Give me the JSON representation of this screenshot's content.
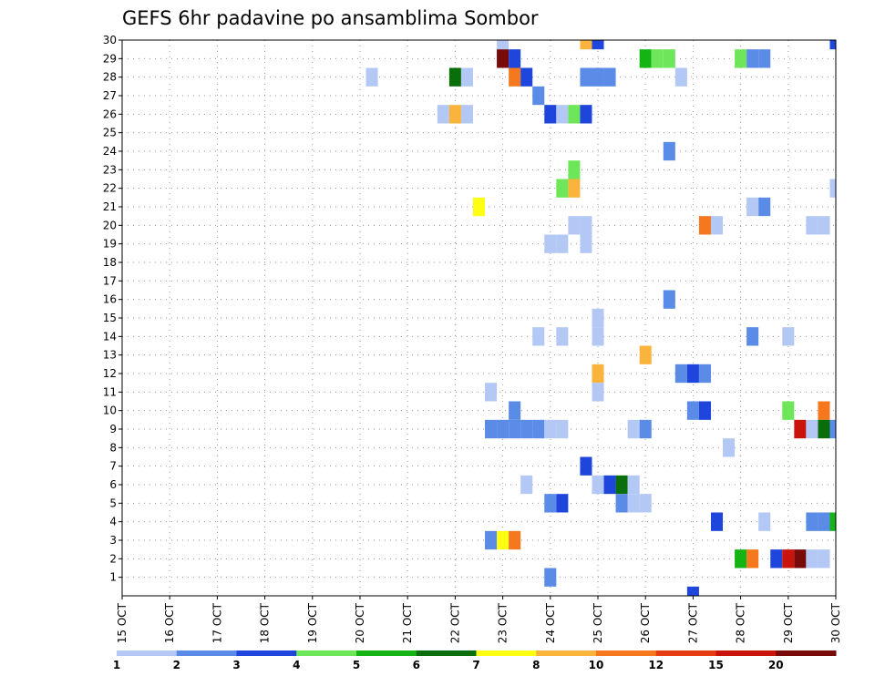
{
  "chart_data": {
    "type": "heatmap",
    "title": "GEFS 6hr padavine po ansamblima Sombor",
    "x_tick_labels": [
      "15 OCT",
      "16 OCT",
      "17 OCT",
      "18 OCT",
      "19 OCT",
      "20 OCT",
      "21 OCT",
      "22 OCT",
      "23 OCT",
      "24 OCT",
      "25 OCT",
      "26 OCT",
      "27 OCT",
      "28 OCT",
      "29 OCT",
      "30 OCT"
    ],
    "xlim_days": [
      15,
      30
    ],
    "ylim_members": [
      0,
      30
    ],
    "y_ticks": [
      1,
      2,
      3,
      4,
      5,
      6,
      7,
      8,
      9,
      10,
      11,
      12,
      13,
      14,
      15,
      16,
      17,
      18,
      19,
      20,
      21,
      22,
      23,
      24,
      25,
      26,
      27,
      28,
      29,
      30
    ],
    "time_step_hours": 6,
    "grid": true,
    "legend": {
      "placement": "bottom",
      "bins": [
        {
          "color": "#b4c8f5"
        },
        {
          "color": "#5a8be6"
        },
        {
          "color": "#1e46dc"
        },
        {
          "color": "#6ee65a"
        },
        {
          "color": "#14b414"
        },
        {
          "color": "#0a6e0a"
        },
        {
          "color": "#ffff14"
        },
        {
          "color": "#fab43c"
        },
        {
          "color": "#f5781e"
        },
        {
          "color": "#e63c14"
        },
        {
          "color": "#c8140a"
        },
        {
          "color": "#780a0a"
        }
      ],
      "labels": [
        "1",
        "2",
        "3",
        "4",
        "5",
        "6",
        "7",
        "8",
        "10",
        "12",
        "15",
        "20"
      ]
    },
    "cells": [
      {
        "member": 30,
        "day": 23.0,
        "v": 1
      },
      {
        "member": 30,
        "day": 24.75,
        "v": 8
      },
      {
        "member": 30,
        "day": 25.0,
        "v": 3
      },
      {
        "member": 30,
        "day": 30.0,
        "v": 3
      },
      {
        "member": 29,
        "day": 23.0,
        "v": 20
      },
      {
        "member": 29,
        "day": 23.25,
        "v": 3
      },
      {
        "member": 29,
        "day": 26.0,
        "v": 5
      },
      {
        "member": 29,
        "day": 26.25,
        "v": 4
      },
      {
        "member": 29,
        "day": 26.5,
        "v": 4
      },
      {
        "member": 29,
        "day": 28.0,
        "v": 4
      },
      {
        "member": 29,
        "day": 28.25,
        "v": 2
      },
      {
        "member": 29,
        "day": 28.5,
        "v": 2
      },
      {
        "member": 28,
        "day": 20.25,
        "v": 1
      },
      {
        "member": 28,
        "day": 22.0,
        "v": 6
      },
      {
        "member": 28,
        "day": 22.25,
        "v": 1
      },
      {
        "member": 28,
        "day": 23.25,
        "v": 10
      },
      {
        "member": 28,
        "day": 23.5,
        "v": 3
      },
      {
        "member": 28,
        "day": 24.75,
        "v": 2
      },
      {
        "member": 28,
        "day": 25.0,
        "v": 2
      },
      {
        "member": 28,
        "day": 25.25,
        "v": 2
      },
      {
        "member": 28,
        "day": 26.75,
        "v": 1
      },
      {
        "member": 27,
        "day": 23.75,
        "v": 2
      },
      {
        "member": 26,
        "day": 21.75,
        "v": 1
      },
      {
        "member": 26,
        "day": 22.0,
        "v": 8
      },
      {
        "member": 26,
        "day": 22.25,
        "v": 1
      },
      {
        "member": 26,
        "day": 24.0,
        "v": 3
      },
      {
        "member": 26,
        "day": 24.25,
        "v": 1
      },
      {
        "member": 26,
        "day": 24.5,
        "v": 4
      },
      {
        "member": 26,
        "day": 24.75,
        "v": 3
      },
      {
        "member": 24,
        "day": 26.5,
        "v": 2
      },
      {
        "member": 23,
        "day": 24.5,
        "v": 4
      },
      {
        "member": 22,
        "day": 24.25,
        "v": 4
      },
      {
        "member": 22,
        "day": 24.5,
        "v": 8
      },
      {
        "member": 22,
        "day": 30.0,
        "v": 1
      },
      {
        "member": 21,
        "day": 22.5,
        "v": 7
      },
      {
        "member": 21,
        "day": 28.25,
        "v": 1
      },
      {
        "member": 21,
        "day": 28.5,
        "v": 2
      },
      {
        "member": 20,
        "day": 24.5,
        "v": 1
      },
      {
        "member": 20,
        "day": 24.75,
        "v": 1
      },
      {
        "member": 20,
        "day": 27.25,
        "v": 10
      },
      {
        "member": 20,
        "day": 27.5,
        "v": 1
      },
      {
        "member": 20,
        "day": 29.5,
        "v": 1
      },
      {
        "member": 20,
        "day": 29.75,
        "v": 1
      },
      {
        "member": 19,
        "day": 24.0,
        "v": 1
      },
      {
        "member": 19,
        "day": 24.25,
        "v": 1
      },
      {
        "member": 19,
        "day": 24.75,
        "v": 1
      },
      {
        "member": 16,
        "day": 26.5,
        "v": 2
      },
      {
        "member": 15,
        "day": 25.0,
        "v": 1
      },
      {
        "member": 14,
        "day": 23.75,
        "v": 1
      },
      {
        "member": 14,
        "day": 24.25,
        "v": 1
      },
      {
        "member": 14,
        "day": 25.0,
        "v": 1
      },
      {
        "member": 14,
        "day": 28.25,
        "v": 2
      },
      {
        "member": 14,
        "day": 29.0,
        "v": 1
      },
      {
        "member": 13,
        "day": 26.0,
        "v": 8
      },
      {
        "member": 12,
        "day": 25.0,
        "v": 8
      },
      {
        "member": 12,
        "day": 26.75,
        "v": 2
      },
      {
        "member": 12,
        "day": 27.0,
        "v": 3
      },
      {
        "member": 12,
        "day": 27.25,
        "v": 2
      },
      {
        "member": 11,
        "day": 22.75,
        "v": 1
      },
      {
        "member": 11,
        "day": 25.0,
        "v": 1
      },
      {
        "member": 10,
        "day": 23.25,
        "v": 2
      },
      {
        "member": 10,
        "day": 27.0,
        "v": 2
      },
      {
        "member": 10,
        "day": 27.25,
        "v": 3
      },
      {
        "member": 10,
        "day": 29.0,
        "v": 4
      },
      {
        "member": 10,
        "day": 29.75,
        "v": 10
      },
      {
        "member": 9,
        "day": 22.75,
        "v": 2
      },
      {
        "member": 9,
        "day": 23.0,
        "v": 2
      },
      {
        "member": 9,
        "day": 23.25,
        "v": 2
      },
      {
        "member": 9,
        "day": 23.5,
        "v": 2
      },
      {
        "member": 9,
        "day": 23.75,
        "v": 2
      },
      {
        "member": 9,
        "day": 24.0,
        "v": 1
      },
      {
        "member": 9,
        "day": 24.25,
        "v": 1
      },
      {
        "member": 9,
        "day": 25.75,
        "v": 1
      },
      {
        "member": 9,
        "day": 26.0,
        "v": 2
      },
      {
        "member": 9,
        "day": 29.25,
        "v": 15
      },
      {
        "member": 9,
        "day": 29.5,
        "v": 1
      },
      {
        "member": 9,
        "day": 29.75,
        "v": 6
      },
      {
        "member": 9,
        "day": 30.0,
        "v": 2
      },
      {
        "member": 8,
        "day": 27.75,
        "v": 1
      },
      {
        "member": 7,
        "day": 24.75,
        "v": 3
      },
      {
        "member": 6,
        "day": 23.5,
        "v": 1
      },
      {
        "member": 6,
        "day": 25.0,
        "v": 1
      },
      {
        "member": 6,
        "day": 25.25,
        "v": 3
      },
      {
        "member": 6,
        "day": 25.5,
        "v": 6
      },
      {
        "member": 6,
        "day": 25.75,
        "v": 1
      },
      {
        "member": 5,
        "day": 24.0,
        "v": 2
      },
      {
        "member": 5,
        "day": 24.25,
        "v": 3
      },
      {
        "member": 5,
        "day": 25.5,
        "v": 2
      },
      {
        "member": 5,
        "day": 25.75,
        "v": 1
      },
      {
        "member": 5,
        "day": 26.0,
        "v": 1
      },
      {
        "member": 4,
        "day": 27.5,
        "v": 3
      },
      {
        "member": 4,
        "day": 28.5,
        "v": 1
      },
      {
        "member": 4,
        "day": 29.5,
        "v": 2
      },
      {
        "member": 4,
        "day": 29.75,
        "v": 2
      },
      {
        "member": 4,
        "day": 30.0,
        "v": 5
      },
      {
        "member": 3,
        "day": 22.75,
        "v": 2
      },
      {
        "member": 3,
        "day": 23.0,
        "v": 7
      },
      {
        "member": 3,
        "day": 23.25,
        "v": 10
      },
      {
        "member": 2,
        "day": 28.0,
        "v": 5
      },
      {
        "member": 2,
        "day": 28.25,
        "v": 10
      },
      {
        "member": 2,
        "day": 28.75,
        "v": 3
      },
      {
        "member": 2,
        "day": 29.0,
        "v": 15
      },
      {
        "member": 2,
        "day": 29.25,
        "v": 20
      },
      {
        "member": 2,
        "day": 29.5,
        "v": 1
      },
      {
        "member": 2,
        "day": 29.75,
        "v": 1
      },
      {
        "member": 1,
        "day": 24.0,
        "v": 2
      },
      {
        "member": 0,
        "day": 27.0,
        "v": 3
      }
    ]
  }
}
